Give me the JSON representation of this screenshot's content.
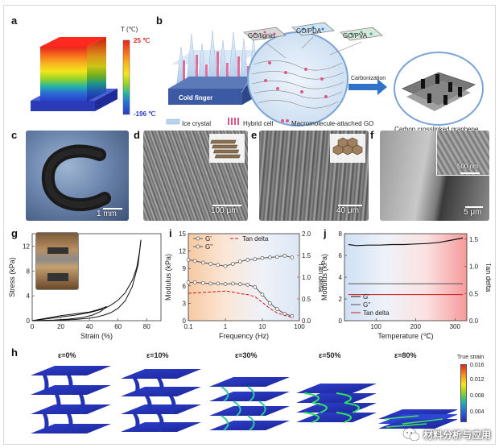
{
  "panels": {
    "a": {
      "letter": "a",
      "colorbar_title": "T (℃)",
      "top_temp": "25 ℃",
      "bottom_temp": "-196 ℃"
    },
    "b": {
      "letter": "b",
      "labels": {
        "go_lignin": "GO/lignin",
        "go_pda": "GO/PDA",
        "go_pva": "GO/PVA",
        "carbonization": "Carbonization",
        "cold_finger": "Cold finger",
        "carbon_graphene": "Carbon crosslinked graphene"
      },
      "legend": [
        "Ice crystal",
        "Hybrid cell",
        "Macromolecule-attached GO"
      ]
    },
    "c": {
      "letter": "c",
      "scale": "1 mm"
    },
    "d": {
      "letter": "d",
      "scale": "100 μm"
    },
    "e": {
      "letter": "e",
      "scale": "40 μm"
    },
    "f": {
      "letter": "f",
      "scale_inset": "500 nm",
      "scale": "5 μm"
    },
    "g": {
      "letter": "g"
    },
    "i": {
      "letter": "i"
    },
    "j": {
      "letter": "j"
    },
    "h": {
      "letter": "h",
      "strains": [
        "ε=0%",
        "ε=10%",
        "ε=30%",
        "ε=50%",
        "ε=80%"
      ],
      "colorbar_title": "True strain",
      "colorbar_ticks": [
        "0.016",
        "0.012",
        "0.008",
        "0.004"
      ]
    }
  },
  "watermark": {
    "text": "材料分析与应用"
  },
  "chart_data": [
    {
      "id": "g",
      "type": "line",
      "xlabel": "Strain (%)",
      "ylabel": "Stress (kPa)",
      "xlim": [
        0,
        90
      ],
      "ylim": [
        0,
        14
      ],
      "xticks": [
        0,
        20,
        40,
        60,
        80
      ],
      "yticks": [
        0,
        4,
        8,
        12
      ],
      "series": [
        {
          "x": [
            0,
            10,
            20,
            30,
            40,
            50,
            55,
            60,
            65,
            70,
            73,
            75,
            76
          ],
          "y": [
            0,
            0.3,
            0.6,
            0.9,
            1.3,
            1.9,
            2.5,
            3.3,
            4.5,
            6.5,
            8.5,
            11,
            13
          ]
        },
        {
          "x": [
            76,
            74,
            70,
            65,
            60,
            55,
            50,
            45,
            40,
            30,
            20,
            10,
            0
          ],
          "y": [
            13,
            9,
            5.5,
            3.2,
            2.0,
            1.3,
            0.9,
            0.6,
            0.4,
            0.2,
            0.1,
            0.03,
            0
          ]
        },
        {
          "x": [
            0,
            10,
            20,
            30,
            40,
            45,
            50,
            52
          ],
          "y": [
            0,
            0.4,
            0.8,
            1.1,
            1.4,
            1.7,
            2.1,
            2.3
          ]
        },
        {
          "x": [
            52,
            48,
            42,
            35,
            25,
            15,
            5,
            0
          ],
          "y": [
            2.3,
            1.5,
            0.9,
            0.5,
            0.25,
            0.1,
            0.02,
            0
          ]
        }
      ]
    },
    {
      "id": "i",
      "type": "line",
      "xlabel": "Frequency (Hz)",
      "ylabel": "Modulus (kPa)",
      "y2label": "Tan delta",
      "xscale": "log",
      "xlim": [
        0.1,
        100
      ],
      "ylim": [
        0,
        15
      ],
      "y2lim": [
        0,
        2.0
      ],
      "xticks": [
        0.1,
        1,
        10,
        100
      ],
      "xticklabels": [
        "0.1",
        "1",
        "10",
        "100"
      ],
      "yticks": [
        0,
        3,
        6,
        9,
        12,
        15
      ],
      "y2ticks": [
        0,
        0.5,
        1.0,
        1.5,
        2.0
      ],
      "y2ticklabels": [
        "0.0",
        "0.5",
        "1.0",
        "1.5",
        "2.0"
      ],
      "legend": [
        "G'",
        "G''",
        "Tan delta"
      ],
      "series": [
        {
          "name": "G'",
          "x": [
            0.1,
            0.15,
            0.25,
            0.4,
            0.63,
            1,
            1.6,
            2.5,
            4,
            6.3,
            10,
            16,
            25,
            40,
            63
          ],
          "y": [
            10.5,
            10.3,
            10.0,
            9.8,
            9.6,
            9.4,
            9.8,
            10.2,
            10.5,
            10.6,
            10.8,
            10.9,
            11.0,
            11.2,
            10.9
          ]
        },
        {
          "name": "G''",
          "x": [
            0.1,
            0.15,
            0.25,
            0.4,
            0.63,
            1,
            1.6,
            2.5,
            4,
            6.3,
            10,
            16,
            25,
            40,
            63
          ],
          "y": [
            6.6,
            6.6,
            6.5,
            6.4,
            6.4,
            6.3,
            6.4,
            6.3,
            6.2,
            5.8,
            4.5,
            3.0,
            2.0,
            1.2,
            0.8
          ]
        },
        {
          "name": "Tan delta",
          "axis": "right",
          "x": [
            0.1,
            0.15,
            0.25,
            0.4,
            0.63,
            1,
            1.6,
            2.5,
            4,
            6.3,
            10,
            16,
            25,
            40,
            63
          ],
          "y": [
            0.63,
            0.64,
            0.65,
            0.66,
            0.67,
            0.68,
            0.66,
            0.62,
            0.6,
            0.55,
            0.42,
            0.28,
            0.18,
            0.12,
            0.08
          ]
        }
      ]
    },
    {
      "id": "j",
      "type": "line",
      "xlabel": "Temperature (℃)",
      "ylabel": "Modulus (kPa)",
      "y2label": "Tan delta",
      "xlim": [
        20,
        330
      ],
      "ylim": [
        0,
        8
      ],
      "y2lim": [
        0,
        1.6
      ],
      "xticks": [
        100,
        200,
        300
      ],
      "yticks": [
        0,
        2,
        4,
        6,
        8
      ],
      "y2ticks": [
        0,
        0.5,
        1.0,
        1.5
      ],
      "y2ticklabels": [
        "0.0",
        "0.5",
        "1.0",
        "1.5"
      ],
      "legend": [
        "G'",
        "G''",
        "Tan delta"
      ],
      "series": [
        {
          "name": "G'",
          "x": [
            30,
            50,
            80,
            110,
            140,
            170,
            200,
            230,
            260,
            290,
            320
          ],
          "y": [
            7.0,
            6.9,
            6.95,
            6.95,
            7.0,
            7.0,
            7.05,
            7.1,
            7.2,
            7.4,
            7.6
          ]
        },
        {
          "name": "G''",
          "x": [
            30,
            60,
            100,
            150,
            200,
            250,
            300,
            320
          ],
          "y": [
            3.4,
            3.4,
            3.4,
            3.4,
            3.4,
            3.4,
            3.4,
            3.4
          ]
        },
        {
          "name": "Tan delta",
          "axis": "right",
          "x": [
            30,
            60,
            100,
            150,
            200,
            250,
            300,
            320
          ],
          "y": [
            0.48,
            0.48,
            0.48,
            0.48,
            0.48,
            0.48,
            0.48,
            0.48
          ]
        }
      ]
    }
  ]
}
